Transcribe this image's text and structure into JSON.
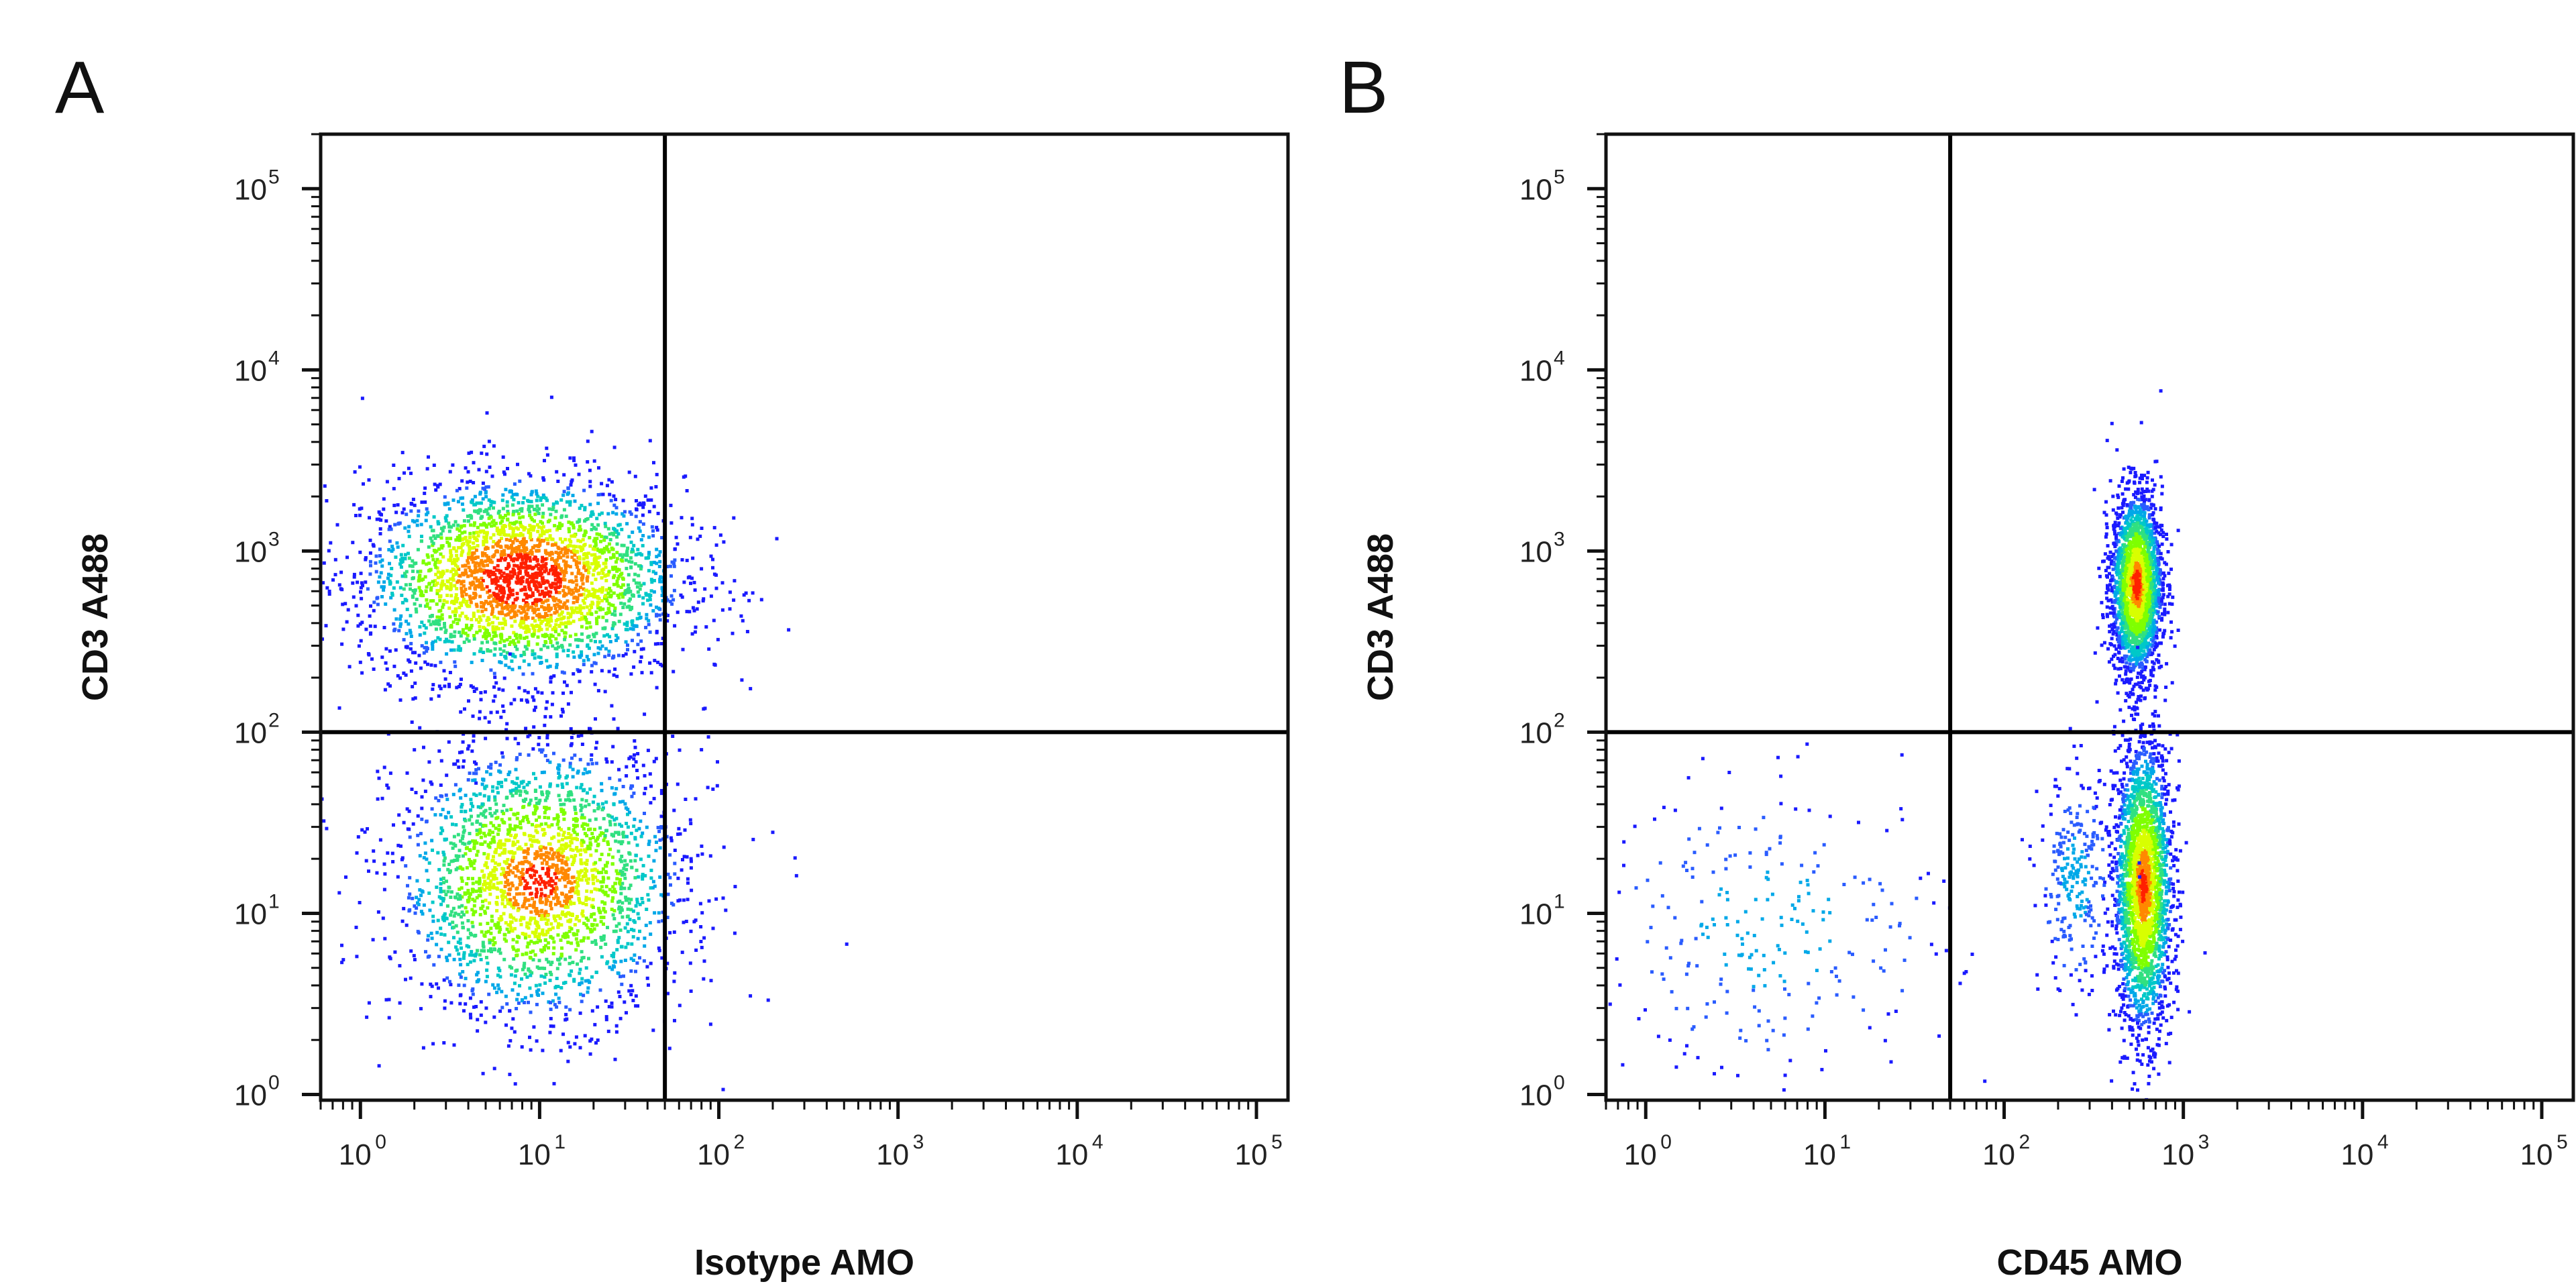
{
  "chart_data": [
    {
      "type": "scatter",
      "panel_label": "A",
      "xlabel": "Isotype AMO",
      "ylabel": "CD3 A488",
      "xscale": "log",
      "yscale": "log",
      "xlim": [
        0.6,
        150000
      ],
      "ylim": [
        0.93,
        200000
      ],
      "grid": false,
      "x_ticks": [
        {
          "base": "10",
          "exp": "0",
          "value": 1
        },
        {
          "base": "10",
          "exp": "1",
          "value": 10
        },
        {
          "base": "10",
          "exp": "2",
          "value": 100
        },
        {
          "base": "10",
          "exp": "3",
          "value": 1000
        },
        {
          "base": "10",
          "exp": "4",
          "value": 10000
        },
        {
          "base": "10",
          "exp": "5",
          "value": 100000
        }
      ],
      "y_ticks": [
        {
          "base": "10",
          "exp": "0",
          "value": 1
        },
        {
          "base": "10",
          "exp": "1",
          "value": 10
        },
        {
          "base": "10",
          "exp": "2",
          "value": 100
        },
        {
          "base": "10",
          "exp": "3",
          "value": 1000
        },
        {
          "base": "10",
          "exp": "4",
          "value": 10000
        },
        {
          "base": "10",
          "exp": "5",
          "value": 100000
        }
      ],
      "quadrant_gate": {
        "x": 50,
        "y": 100
      },
      "populations": [
        {
          "center_x": 8,
          "center_y": 700,
          "spread_x_decades": 0.45,
          "spread_y_decades": 0.28,
          "share": 0.55
        },
        {
          "center_x": 10,
          "center_y": 15,
          "spread_x_decades": 0.4,
          "spread_y_decades": 0.38,
          "share": 0.45
        }
      ],
      "outliers": [
        {
          "x": 80,
          "y": 80
        },
        {
          "x": 200,
          "y": 28
        },
        {
          "x": 70,
          "y": 20
        },
        {
          "x": 150,
          "y": 3.5
        }
      ]
    },
    {
      "type": "scatter",
      "panel_label": "B",
      "xlabel": "CD45 AMO",
      "ylabel": "CD3 A488",
      "xscale": "log",
      "yscale": "log",
      "xlim": [
        0.6,
        150000
      ],
      "ylim": [
        0.93,
        200000
      ],
      "grid": false,
      "x_ticks": [
        {
          "base": "10",
          "exp": "0",
          "value": 1
        },
        {
          "base": "10",
          "exp": "1",
          "value": 10
        },
        {
          "base": "10",
          "exp": "2",
          "value": 100
        },
        {
          "base": "10",
          "exp": "3",
          "value": 1000
        },
        {
          "base": "10",
          "exp": "4",
          "value": 10000
        },
        {
          "base": "10",
          "exp": "5",
          "value": 100000
        }
      ],
      "y_ticks": [
        {
          "base": "10",
          "exp": "0",
          "value": 1
        },
        {
          "base": "10",
          "exp": "1",
          "value": 10
        },
        {
          "base": "10",
          "exp": "2",
          "value": 100
        },
        {
          "base": "10",
          "exp": "3",
          "value": 1000
        },
        {
          "base": "10",
          "exp": "4",
          "value": 10000
        },
        {
          "base": "10",
          "exp": "5",
          "value": 100000
        }
      ],
      "quadrant_gate": {
        "x": 50,
        "y": 100
      },
      "populations": [
        {
          "center_x": 550,
          "center_y": 650,
          "spread_x_decades": 0.07,
          "spread_y_decades": 0.25,
          "share": 0.45
        },
        {
          "center_x": 600,
          "center_y": 14,
          "spread_x_decades": 0.08,
          "spread_y_decades": 0.4,
          "share": 0.45
        },
        {
          "center_x": 250,
          "center_y": 15,
          "spread_x_decades": 0.1,
          "spread_y_decades": 0.3,
          "share": 0.05
        },
        {
          "center_x": 5,
          "center_y": 8,
          "spread_x_decades": 0.5,
          "spread_y_decades": 0.4,
          "share": 0.05
        }
      ],
      "outliers": []
    }
  ],
  "colors": {
    "density_low": "#1a1aff",
    "density_mid": "#00c8c8",
    "density_high": "#7fff00",
    "density_peak": "#ff2000",
    "axis": "#111111",
    "gate": "#000000"
  }
}
